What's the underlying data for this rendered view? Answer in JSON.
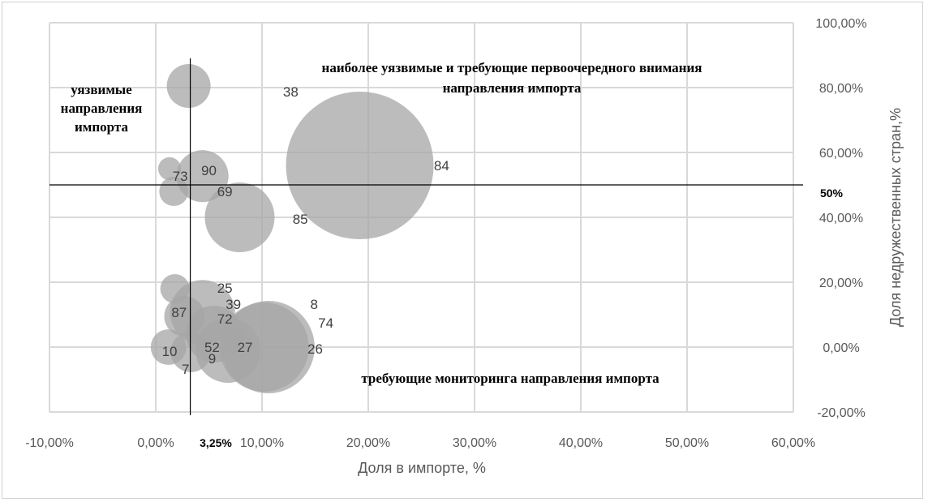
{
  "chart_data": {
    "type": "scatter",
    "subtype": "bubble",
    "xlabel": "Доля в импорте, %",
    "ylabel": "Доля недружественных стран,%",
    "xlim": [
      -10,
      60
    ],
    "ylim": [
      -20,
      100
    ],
    "grid": true,
    "x_ticks": [
      "-10,00%",
      "0,00%",
      "10,00%",
      "20,00%",
      "30,00%",
      "40,00%",
      "50,00%",
      "60,00%"
    ],
    "y_ticks": [
      "100,00%",
      "80,00%",
      "60,00%",
      "40,00%",
      "20,00%",
      "0,00%",
      "-20,00%"
    ],
    "y_axis_side": "right",
    "color": "#a6a6a6",
    "bubbles": [
      {
        "x": 19.2,
        "y": 56.0,
        "size": 100
      },
      {
        "x": 3.1,
        "y": 80.5,
        "size": 8.8
      },
      {
        "x": 1.3,
        "y": 55.0,
        "size": 2.4
      },
      {
        "x": 1.7,
        "y": 48.0,
        "size": 3.9
      },
      {
        "x": 4.4,
        "y": 52.7,
        "size": 12.4
      },
      {
        "x": 7.9,
        "y": 40.0,
        "size": 22.3
      },
      {
        "x": 1.8,
        "y": 18.0,
        "size": 3.9
      },
      {
        "x": 4.4,
        "y": 10.7,
        "size": 19.3
      },
      {
        "x": 2.7,
        "y": 9.5,
        "size": 7.5
      },
      {
        "x": 5.5,
        "y": 4.0,
        "size": 14.8
      },
      {
        "x": 1.2,
        "y": 0.0,
        "size": 5.8
      },
      {
        "x": 3.3,
        "y": -1.5,
        "size": 7.5
      },
      {
        "x": 6.8,
        "y": -1.0,
        "size": 19.3
      },
      {
        "x": 10.6,
        "y": 0.0,
        "size": 39.2
      },
      {
        "x": 10.2,
        "y": 0.0,
        "size": 36.5
      }
    ],
    "data_labels": [
      {
        "text": "38",
        "x": 12.7,
        "y": 78.8
      },
      {
        "text": "84",
        "x": 26.9,
        "y": 56.0
      },
      {
        "text": "73",
        "x": 2.3,
        "y": 52.7
      },
      {
        "text": "90",
        "x": 5.0,
        "y": 54.5
      },
      {
        "text": "69",
        "x": 6.5,
        "y": 48.0
      },
      {
        "text": "85",
        "x": 13.6,
        "y": 39.5
      },
      {
        "text": "25",
        "x": 6.5,
        "y": 18.2
      },
      {
        "text": "39",
        "x": 7.3,
        "y": 13.2
      },
      {
        "text": "8",
        "x": 14.9,
        "y": 13.2
      },
      {
        "text": "87",
        "x": 2.2,
        "y": 10.7
      },
      {
        "text": "72",
        "x": 6.5,
        "y": 8.7
      },
      {
        "text": "74",
        "x": 16.0,
        "y": 7.5
      },
      {
        "text": "10",
        "x": 1.3,
        "y": -1.2
      },
      {
        "text": "52",
        "x": 5.3,
        "y": 0.0
      },
      {
        "text": "27",
        "x": 8.4,
        "y": 0.0
      },
      {
        "text": "26",
        "x": 15.0,
        "y": -0.5
      },
      {
        "text": "9",
        "x": 5.3,
        "y": -3.5
      },
      {
        "text": "7",
        "x": 2.8,
        "y": -6.7
      }
    ],
    "reference_lines": {
      "x_value": 3.25,
      "x_label": "3,25%",
      "y_value": 50,
      "y_label": "50%"
    },
    "annotations": {
      "top_left": [
        "уязвимые",
        "направления",
        "импорта"
      ],
      "top_right": [
        "наиболее уязвимые и требующие первоочередного внимания",
        "направления импорта"
      ],
      "bottom": "требующие мониторинга направления импорта"
    }
  }
}
